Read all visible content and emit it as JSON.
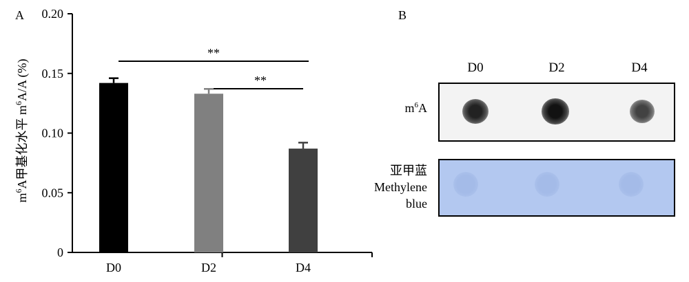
{
  "panel_a_letter": "A",
  "panel_b_letter": "B",
  "chart_data": {
    "type": "bar",
    "categories": [
      "D0",
      "D2",
      "D4"
    ],
    "values": [
      0.142,
      0.133,
      0.087
    ],
    "errors": [
      0.004,
      0.004,
      0.005
    ],
    "colors": [
      "#000000",
      "#808080",
      "#404040"
    ],
    "ylabel_pre": "m",
    "ylabel_sup": "6",
    "ylabel_mid": "A甲基化水平 m",
    "ylabel_sup2": "6",
    "ylabel_post": "A/A (%)",
    "ylim": [
      0,
      0.2
    ],
    "yticks": [
      "0",
      "0.05",
      "0.10",
      "0.15",
      "0.20"
    ],
    "significance": [
      {
        "from": "D0",
        "to": "D4",
        "label": "**"
      },
      {
        "from": "D2",
        "to": "D4",
        "label": "**"
      }
    ]
  },
  "blot": {
    "lanes": [
      "D0",
      "D2",
      "D4"
    ],
    "m6a_label_pre": "m",
    "m6a_label_sup": "6",
    "m6a_label_post": "A",
    "mb_label_cn": "亚甲蓝",
    "mb_label_en1": "Methylene",
    "mb_label_en2": "blue",
    "m6a_intensity": [
      0.85,
      0.95,
      0.65
    ],
    "mb_spot_color": "#a4bbe8"
  }
}
